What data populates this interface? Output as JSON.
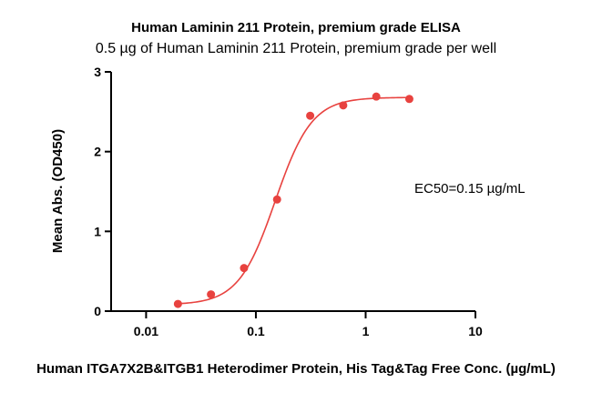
{
  "chart_data": {
    "type": "scatter",
    "title": "Human Laminin 211 Protein, premium grade ELISA",
    "subtitle": "0.5 µg of Human Laminin 211 Protein, premium grade per well",
    "xlabel": "Human ITGA7X2B&ITGB1 Heterodimer Protein, His Tag&Tag Free Conc. (µg/mL)",
    "ylabel": "Mean Abs. (OD450)",
    "x_scale": "log",
    "xlim": [
      0.0048,
      10
    ],
    "ylim": [
      0,
      3
    ],
    "x_ticks": [
      {
        "value": 0.01,
        "label": "0.01"
      },
      {
        "value": 0.1,
        "label": "0.1"
      },
      {
        "value": 1,
        "label": "1"
      },
      {
        "value": 10,
        "label": "10"
      }
    ],
    "y_ticks": [
      {
        "value": 0,
        "label": "0"
      },
      {
        "value": 1,
        "label": "1"
      },
      {
        "value": 2,
        "label": "2"
      },
      {
        "value": 3,
        "label": "3"
      }
    ],
    "grid": false,
    "color": "#e8423f",
    "annotation": "EC50=0.15 µg/mL",
    "points": [
      {
        "x": 0.0195,
        "y": 0.09
      },
      {
        "x": 0.039,
        "y": 0.21
      },
      {
        "x": 0.078,
        "y": 0.54
      },
      {
        "x": 0.156,
        "y": 1.4
      },
      {
        "x": 0.3125,
        "y": 2.45
      },
      {
        "x": 0.625,
        "y": 2.58
      },
      {
        "x": 1.25,
        "y": 2.69
      },
      {
        "x": 2.5,
        "y": 2.66
      }
    ],
    "fit": {
      "bottom": 0.08,
      "top": 2.68,
      "ec50": 0.15,
      "hill": 2.6
    }
  }
}
